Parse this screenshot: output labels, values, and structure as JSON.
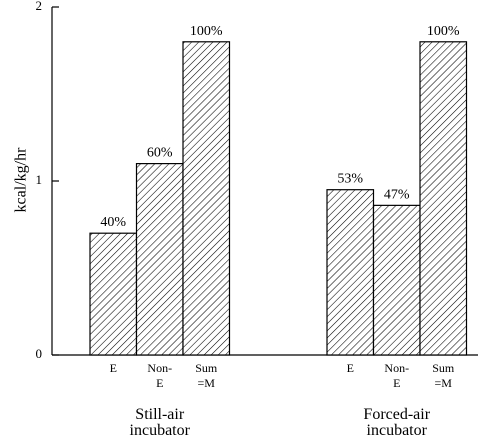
{
  "chart_data": {
    "type": "bar",
    "ylabel": "kcal/kg/hr",
    "xlabel": "",
    "title": "",
    "ylim": [
      0,
      2
    ],
    "yticks": [
      "0",
      "1",
      "2"
    ],
    "grid": false,
    "legend": "none",
    "colors": {
      "bar_fill": "#ffffff",
      "hatch": "#000000",
      "axis": "#000000"
    },
    "groups": [
      {
        "label_lines": [
          "Still-air",
          "incubator"
        ],
        "bars": [
          {
            "label_lines": [
              "E"
            ],
            "value": 0.7,
            "pct": "40%"
          },
          {
            "label_lines": [
              "Non-",
              "E"
            ],
            "value": 1.1,
            "pct": "60%"
          },
          {
            "label_lines": [
              "Sum",
              "=M"
            ],
            "value": 1.8,
            "pct": "100%"
          }
        ]
      },
      {
        "label_lines": [
          "Forced-air",
          "incubator"
        ],
        "bars": [
          {
            "label_lines": [
              "E"
            ],
            "value": 0.95,
            "pct": "53%"
          },
          {
            "label_lines": [
              "Non-",
              "E"
            ],
            "value": 0.86,
            "pct": "47%"
          },
          {
            "label_lines": [
              "Sum",
              "=M"
            ],
            "value": 1.8,
            "pct": "100%"
          }
        ]
      }
    ]
  }
}
